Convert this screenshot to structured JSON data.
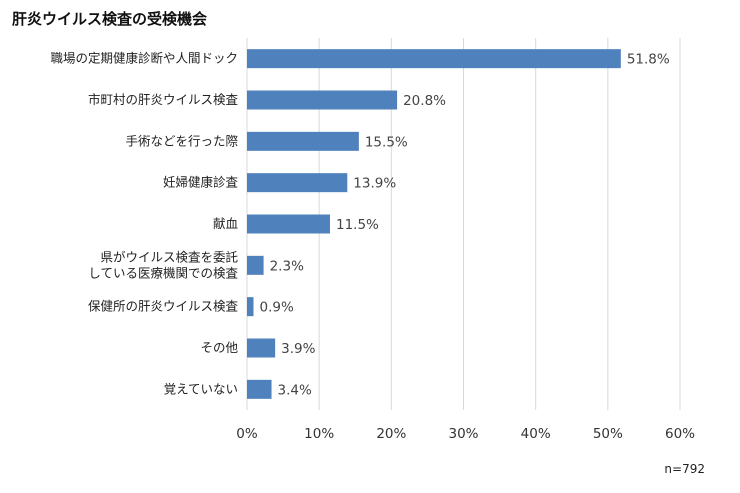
{
  "title": "肝炎ウイルス検査の受検機会",
  "note": "n=792",
  "chart_data": {
    "type": "bar",
    "orientation": "horizontal",
    "title": "肝炎ウイルス検査の受検機会",
    "categories": [
      [
        "職場の定期健康診断や人間ドック"
      ],
      [
        "市町村の肝炎ウイルス検査"
      ],
      [
        "手術などを行った際"
      ],
      [
        "妊婦健康診査"
      ],
      [
        "献血"
      ],
      [
        "県がウイルス検査を委託",
        "している医療機関での検査"
      ],
      [
        "保健所の肝炎ウイルス検査"
      ],
      [
        "その他"
      ],
      [
        "覚えていない"
      ]
    ],
    "values": [
      51.8,
      20.8,
      15.5,
      13.9,
      11.5,
      2.3,
      0.9,
      3.9,
      3.4
    ],
    "value_labels": [
      "51.8%",
      "20.8%",
      "15.5%",
      "13.9%",
      "11.5%",
      "2.3%",
      "0.9%",
      "3.9%",
      "3.4%"
    ],
    "xlim": [
      0,
      60
    ],
    "xticks": [
      0,
      10,
      20,
      30,
      40,
      50,
      60
    ],
    "xtick_labels": [
      "0%",
      "10%",
      "20%",
      "30%",
      "40%",
      "50%",
      "60%"
    ],
    "grid": "vertical",
    "bar_color": "#4f81bd",
    "grid_color": "#d9d9d9"
  }
}
